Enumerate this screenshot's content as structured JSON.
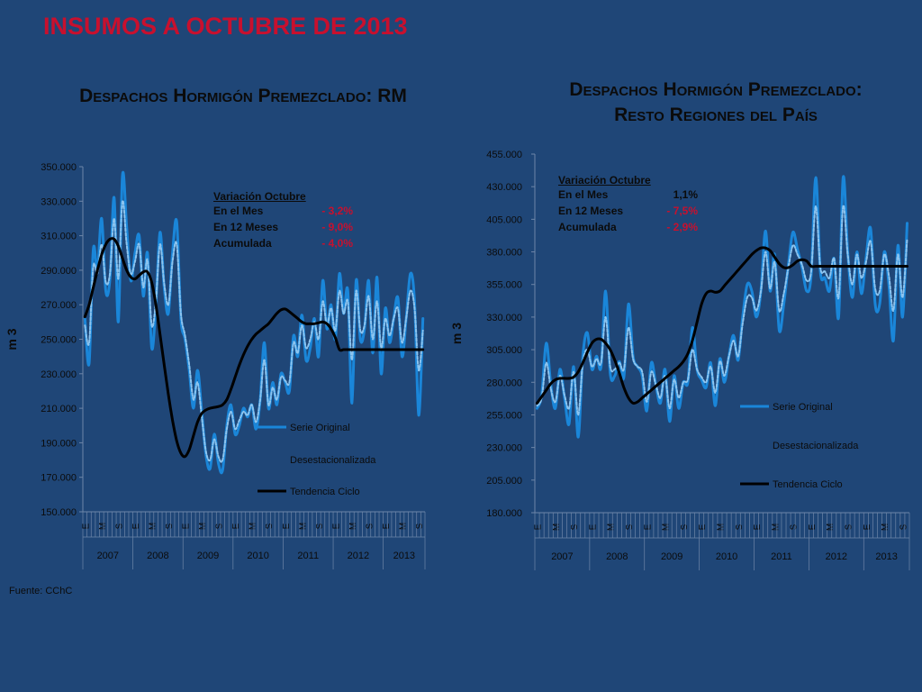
{
  "page": {
    "title": "INSUMOS A OCTUBRE DE 2013",
    "source": "Fuente: CChC"
  },
  "charts": [
    {
      "title_line1": "Despachos Hormigón Premezclado: RM",
      "title_line2": "",
      "annotation": {
        "heading": "Variación Octubre",
        "rows": [
          {
            "label": "En el Mes",
            "value": "- 3,2%"
          },
          {
            "label": "En 12 Meses",
            "value": "- 9,0%"
          },
          {
            "label": "Acumulada",
            "value": "- 4,0%"
          }
        ]
      }
    },
    {
      "title_line1": "Despachos Hormigón Premezclado:",
      "title_line2": "Resto Regiones del País",
      "annotation": {
        "heading": "Variación Octubre",
        "rows": [
          {
            "label": "En el Mes",
            "value": "1,1%"
          },
          {
            "label": "En 12 Meses",
            "value": "- 7,5%"
          },
          {
            "label": "Acumulada",
            "value": "- 2,9%"
          }
        ]
      }
    }
  ],
  "colors": {
    "background": "#1f4677",
    "original": "#1a86d9",
    "deseasonalized": "#8cc4ef",
    "trend": "#000000",
    "title_red": "#c8102e"
  },
  "chart_data": [
    {
      "type": "line",
      "ylabel": "m 3",
      "ylim": [
        150000,
        350000
      ],
      "yticks": [
        "150.000",
        "170.000",
        "190.000",
        "210.000",
        "230.000",
        "250.000",
        "270.000",
        "290.000",
        "310.000",
        "330.000",
        "350.000"
      ],
      "month_tick_labels": [
        "E",
        "M",
        "S"
      ],
      "years": [
        "2007",
        "2008",
        "2009",
        "2010",
        "2011",
        "2012",
        "2013"
      ],
      "months_count": 82,
      "legend": [
        "Serie Original",
        "Desestacionalizada",
        "Tendencia Ciclo"
      ],
      "series": [
        {
          "name": "Serie Original",
          "values": [
            262000,
            236000,
            302000,
            290000,
            320000,
            278000,
            285000,
            332000,
            260000,
            345000,
            315000,
            284000,
            300000,
            310000,
            275000,
            300000,
            245000,
            270000,
            312000,
            280000,
            265000,
            300000,
            318000,
            262000,
            250000,
            232000,
            210000,
            232000,
            208000,
            183000,
            175000,
            195000,
            178000,
            174000,
            200000,
            212000,
            195000,
            200000,
            210000,
            205000,
            212000,
            198000,
            215000,
            248000,
            210000,
            225000,
            212000,
            230000,
            225000,
            220000,
            252000,
            240000,
            264000,
            238000,
            245000,
            262000,
            240000,
            284000,
            256000,
            270000,
            250000,
            288000,
            265000,
            278000,
            213000,
            284000,
            250000,
            256000,
            284000,
            242000,
            286000,
            230000,
            268000,
            248000,
            262000,
            274000,
            240000,
            262000,
            288000,
            272000,
            206000,
            262000
          ]
        },
        {
          "name": "Desestacionalizada",
          "values": [
            258000,
            248000,
            292000,
            288000,
            305000,
            283000,
            288000,
            320000,
            285000,
            330000,
            305000,
            288000,
            295000,
            305000,
            280000,
            296000,
            258000,
            272000,
            305000,
            282000,
            270000,
            295000,
            305000,
            265000,
            252000,
            235000,
            215000,
            225000,
            205000,
            185000,
            180000,
            192000,
            182000,
            180000,
            198000,
            208000,
            198000,
            203000,
            208000,
            206000,
            212000,
            202000,
            215000,
            238000,
            212000,
            222000,
            215000,
            228000,
            226000,
            225000,
            248000,
            242000,
            258000,
            245000,
            250000,
            260000,
            250000,
            272000,
            258000,
            268000,
            255000,
            278000,
            265000,
            272000,
            238000,
            278000,
            255000,
            258000,
            275000,
            250000,
            272000,
            245000,
            262000,
            252000,
            262000,
            268000,
            248000,
            262000,
            278000,
            268000,
            232000,
            255000
          ]
        },
        {
          "name": "Tendencia Ciclo",
          "values": [
            263000,
            270000,
            280000,
            290000,
            299000,
            305000,
            308000,
            308000,
            304000,
            297000,
            290000,
            286000,
            285000,
            287000,
            289000,
            289000,
            283000,
            270000,
            253000,
            235000,
            218000,
            203000,
            191000,
            184000,
            182000,
            186000,
            194000,
            202000,
            207000,
            209000,
            210000,
            210500,
            211000,
            212000,
            215000,
            221000,
            228000,
            235000,
            241000,
            246000,
            250000,
            253000,
            255000,
            257000,
            259000,
            262000,
            265000,
            267000,
            267500,
            266000,
            264000,
            262000,
            260000,
            259000,
            259000,
            259000,
            259500,
            260000,
            259000,
            256000,
            251000,
            244000,
            244000,
            244000,
            244000,
            244000,
            244000,
            244000,
            244000,
            244000,
            244000,
            244000,
            244000,
            244000,
            244000,
            244000,
            244000,
            244000,
            244000,
            244000,
            244000,
            244000
          ]
        }
      ]
    },
    {
      "type": "line",
      "ylabel": "m 3",
      "ylim": [
        180000,
        455000
      ],
      "yticks": [
        "180.000",
        "205.000",
        "230.000",
        "255.000",
        "280.000",
        "305.000",
        "330.000",
        "355.000",
        "380.000",
        "405.000",
        "430.000",
        "455.000"
      ],
      "month_tick_labels": [
        "E",
        "M",
        "S"
      ],
      "years": [
        "2007",
        "2008",
        "2009",
        "2010",
        "2011",
        "2012",
        "2013"
      ],
      "months_count": 82,
      "legend": [
        "Serie Original",
        "Desestacionalizada",
        "Tendencia Ciclo"
      ],
      "series": [
        {
          "name": "Serie Original",
          "values": [
            260000,
            270000,
            310000,
            278000,
            260000,
            290000,
            268000,
            248000,
            292000,
            238000,
            300000,
            318000,
            290000,
            300000,
            292000,
            350000,
            287000,
            285000,
            296000,
            284000,
            340000,
            300000,
            292000,
            285000,
            258000,
            295000,
            278000,
            264000,
            290000,
            250000,
            285000,
            260000,
            280000,
            280000,
            322000,
            290000,
            282000,
            276000,
            295000,
            262000,
            298000,
            280000,
            300000,
            316000,
            297000,
            330000,
            355000,
            350000,
            330000,
            350000,
            396000,
            350000,
            378000,
            320000,
            340000,
            370000,
            395000,
            382000,
            368000,
            350000,
            362000,
            437000,
            365000,
            360000,
            350000,
            375000,
            330000,
            437000,
            380000,
            345000,
            380000,
            348000,
            375000,
            398000,
            340000,
            340000,
            380000,
            355000,
            312000,
            385000,
            330000,
            402000
          ]
        },
        {
          "name": "Desestacionalizada",
          "values": [
            262000,
            268000,
            295000,
            275000,
            265000,
            285000,
            270000,
            260000,
            288000,
            255000,
            295000,
            305000,
            292000,
            298000,
            295000,
            330000,
            292000,
            290000,
            295000,
            290000,
            322000,
            298000,
            292000,
            288000,
            265000,
            288000,
            278000,
            268000,
            285000,
            260000,
            282000,
            268000,
            280000,
            282000,
            305000,
            290000,
            284000,
            280000,
            292000,
            272000,
            296000,
            285000,
            300000,
            312000,
            300000,
            325000,
            345000,
            345000,
            335000,
            350000,
            380000,
            352000,
            372000,
            335000,
            348000,
            368000,
            385000,
            378000,
            370000,
            358000,
            365000,
            415000,
            368000,
            365000,
            360000,
            375000,
            345000,
            415000,
            378000,
            355000,
            378000,
            360000,
            372000,
            388000,
            352000,
            350000,
            378000,
            362000,
            335000,
            378000,
            345000,
            390000
          ]
        },
        {
          "name": "Tendencia Ciclo",
          "values": [
            264000,
            269000,
            274000,
            279000,
            282000,
            283000,
            283000,
            283000,
            284000,
            288000,
            295000,
            303000,
            310000,
            313000,
            313000,
            310000,
            305000,
            297000,
            287000,
            276000,
            268000,
            264000,
            265000,
            268000,
            271000,
            274000,
            277000,
            280000,
            283000,
            286000,
            289000,
            292000,
            296000,
            302000,
            312000,
            326000,
            340000,
            348000,
            350000,
            349000,
            350000,
            354000,
            358000,
            362000,
            366000,
            370000,
            374000,
            378000,
            381000,
            383000,
            383000,
            381000,
            376000,
            371000,
            368000,
            368000,
            370000,
            373000,
            374000,
            373000,
            369000,
            369000,
            369000,
            369000,
            369000,
            369000,
            369000,
            369000,
            369000,
            369000,
            369000,
            369000,
            369000,
            369000,
            369000,
            369000,
            369000,
            369000,
            369000,
            369000,
            369000,
            369000
          ]
        }
      ]
    }
  ]
}
